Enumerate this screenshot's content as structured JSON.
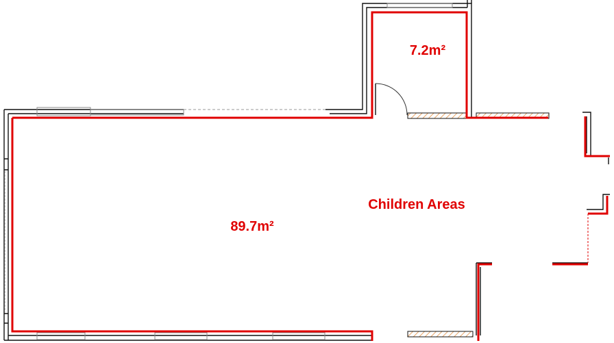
{
  "rooms": [
    {
      "area": "7.2m²"
    },
    {
      "area": "89.7m²"
    }
  ],
  "zone_label": "Children Areas"
}
